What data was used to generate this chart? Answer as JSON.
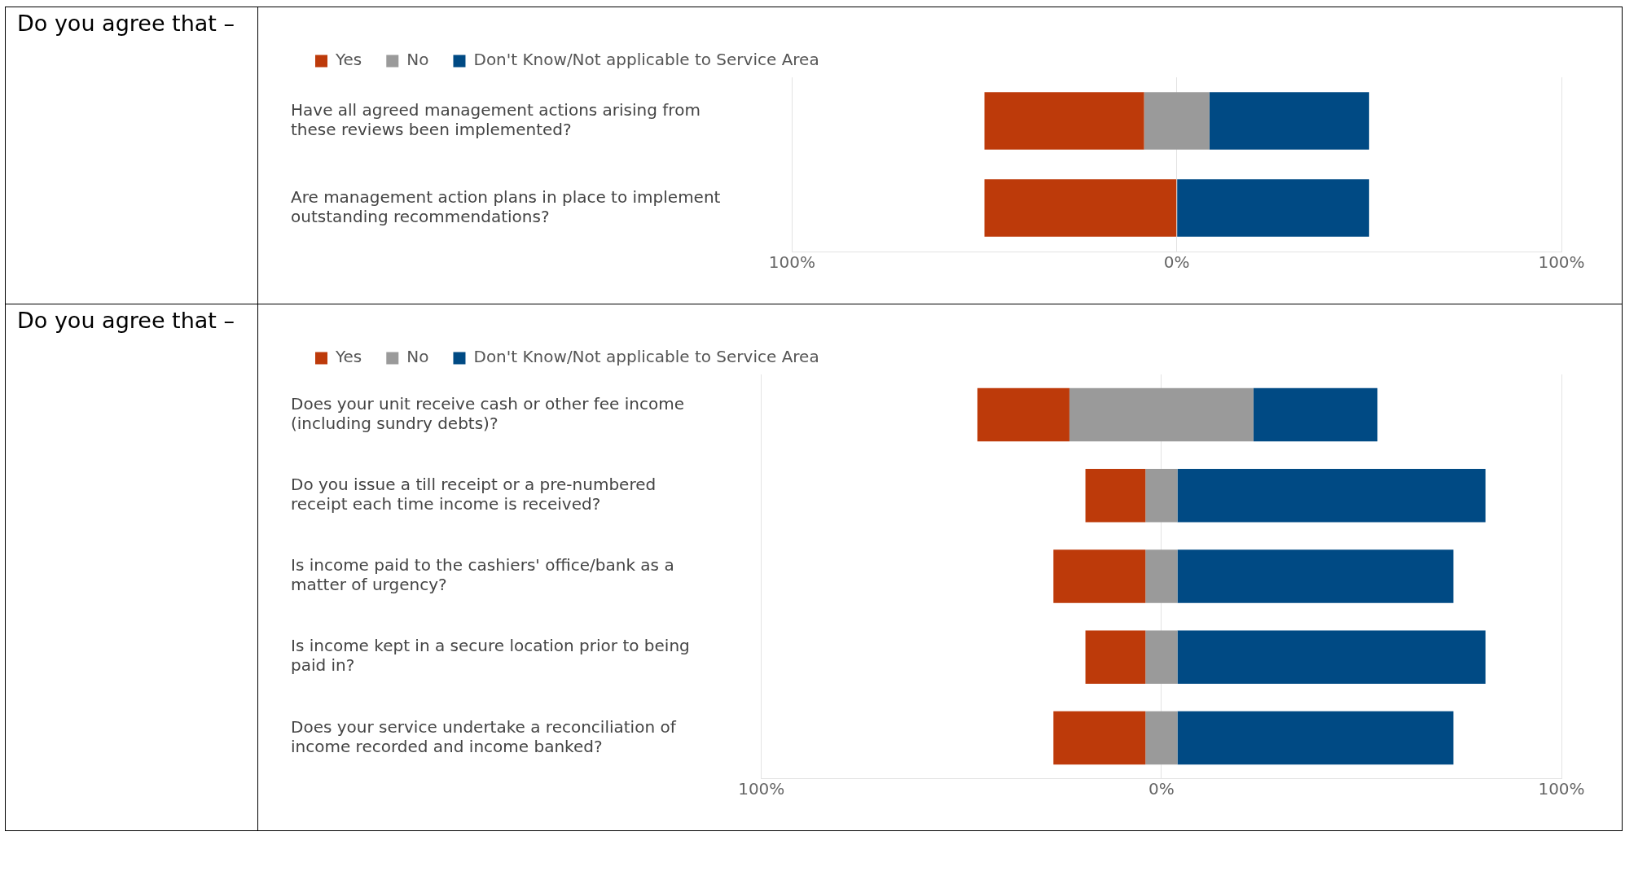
{
  "chart_data": [
    {
      "type": "bar",
      "orientation": "horizontal",
      "annotations": [
        "Do you agree that –"
      ],
      "categories": [
        "Have all agreed management actions arising from these reviews been implemented?",
        "Are management action plans in place to implement outstanding recommendations?"
      ],
      "series": [
        {
          "name": "Yes",
          "color": "#bd3a0a",
          "values": [
            41.5,
            50
          ],
          "base": [
            -50,
            -50
          ]
        },
        {
          "name": "No",
          "color": "#9a9a9a",
          "values": [
            17,
            null
          ],
          "base": [
            -8.5,
            null
          ]
        },
        {
          "name": "Don't Know/Not applicable to Service Area",
          "color": "#004a84",
          "values": [
            41.5,
            50
          ],
          "base": [
            8.5,
            0
          ]
        }
      ],
      "xlim": [
        -100,
        100
      ],
      "xticks": [
        {
          "value": -100,
          "label": "100%"
        },
        {
          "value": 0,
          "label": "0%"
        },
        {
          "value": 100,
          "label": "100%"
        }
      ],
      "grid": "x",
      "legend": "top left"
    },
    {
      "type": "bar",
      "orientation": "horizontal",
      "annotations": [
        "Do you agree that –"
      ],
      "categories": [
        "Does your unit receive cash or other fee income (including sundry debts)?",
        "Do you issue a till receipt or a pre-numbered receipt each time income is received?",
        "Is income paid to the cashiers' office/bank as a matter of urgency?",
        "Is income kept in a secure location prior to being paid in?",
        "Does your service undertake a reconciliation of income recorded and income banked?"
      ],
      "series": [
        {
          "name": "Yes",
          "color": "#bd3a0a",
          "values": [
            23,
            15,
            23,
            15,
            23
          ],
          "base": [
            -46,
            -19,
            -27,
            -19,
            -27
          ]
        },
        {
          "name": "No",
          "color": "#9a9a9a",
          "values": [
            46,
            8,
            8,
            8,
            8
          ],
          "base": [
            -23,
            -4,
            -4,
            -4,
            -4
          ]
        },
        {
          "name": "Don't Know/Not applicable to Service Area",
          "color": "#004a84",
          "values": [
            31,
            77,
            69,
            77,
            69
          ],
          "base": [
            23,
            4,
            4,
            4,
            4
          ]
        }
      ],
      "xlim": [
        -100,
        100
      ],
      "xticks": [
        {
          "value": -100,
          "label": "100%"
        },
        {
          "value": 0,
          "label": "0%"
        },
        {
          "value": 100,
          "label": "100%"
        }
      ],
      "grid": "x",
      "legend": "top left"
    }
  ]
}
